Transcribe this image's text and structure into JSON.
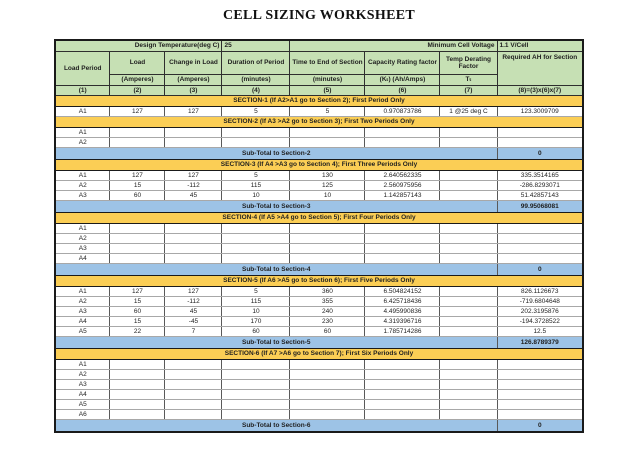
{
  "title": "CELL SIZING WORKSHEET",
  "colors": {
    "header_green": "#C6E0B4",
    "section_bar_gold": "#FBCE55",
    "subtotal_blue": "#9DC3E6",
    "border_dark": "#1a1a1a"
  },
  "meta": {
    "design_temp_label": "Design Temperature(deg C)",
    "design_temp_value": "25",
    "min_cell_voltage_label": "Minimum Cell Voltage",
    "min_cell_voltage_value": "1.1 V/Cell"
  },
  "columns": {
    "headers": [
      "Load Period",
      "Load",
      "Change in Load",
      "Duration of Period",
      "Time to End of Section",
      "Capacity Rating factor",
      "Temp Derating Factor",
      "Required AH for Section"
    ],
    "units": [
      "",
      "(Amperes)",
      "(Amperes)",
      "(minutes)",
      "(minutes)",
      "(Kₜ) (Ah/Amps)",
      "Tₜ",
      ""
    ],
    "numbers": [
      "(1)",
      "(2)",
      "(3)",
      "(4)",
      "(5)",
      "(6)",
      "(7)",
      "(8)=(3)x(6)x(7)"
    ]
  },
  "sections": [
    {
      "header": "SECTION-1 (If A2>A1 go to Section 2); First Period Only",
      "rows": [
        [
          "A1",
          "127",
          "127",
          "5",
          "5",
          "0.970873786",
          "1 @25 deg C",
          "123.3009709"
        ]
      ],
      "subtotal": null
    },
    {
      "header": "SECTION-2 (If A3 >A2 go to Section 3); First Two Periods Only",
      "rows": [
        [
          "A1",
          "",
          "",
          "",
          "",
          "",
          "",
          ""
        ],
        [
          "A2",
          "",
          "",
          "",
          "",
          "",
          "",
          ""
        ]
      ],
      "subtotal": {
        "label": "Sub-Total to Section-2",
        "value": "0"
      }
    },
    {
      "header": "SECTION-3 (If A4 >A3 go to Section 4); First Three Periods Only",
      "rows": [
        [
          "A1",
          "127",
          "127",
          "5",
          "130",
          "2.640562335",
          "",
          "335.3514165"
        ],
        [
          "A2",
          "15",
          "-112",
          "115",
          "125",
          "2.560975956",
          "",
          "-286.8293071"
        ],
        [
          "A3",
          "60",
          "45",
          "10",
          "10",
          "1.142857143",
          "",
          "51.42857143"
        ]
      ],
      "subtotal": {
        "label": "Sub-Total to Section-3",
        "value": "99.95068081"
      }
    },
    {
      "header": "SECTION-4 (If A5 >A4 go to Section 5); First Four Periods Only",
      "rows": [
        [
          "A1",
          "",
          "",
          "",
          "",
          "",
          "",
          ""
        ],
        [
          "A2",
          "",
          "",
          "",
          "",
          "",
          "",
          ""
        ],
        [
          "A3",
          "",
          "",
          "",
          "",
          "",
          "",
          ""
        ],
        [
          "A4",
          "",
          "",
          "",
          "",
          "",
          "",
          ""
        ]
      ],
      "subtotal": {
        "label": "Sub-Total to Section-4",
        "value": "0"
      }
    },
    {
      "header": "SECTION-5 (If A6 >A5 go to Section 6); First Five Periods Only",
      "rows": [
        [
          "A1",
          "127",
          "127",
          "5",
          "360",
          "6.504824152",
          "",
          "826.1126673"
        ],
        [
          "A2",
          "15",
          "-112",
          "115",
          "355",
          "6.425718436",
          "",
          "-719.6804648"
        ],
        [
          "A3",
          "60",
          "45",
          "10",
          "240",
          "4.495990836",
          "",
          "202.3195876"
        ],
        [
          "A4",
          "15",
          "-45",
          "170",
          "230",
          "4.319396716",
          "",
          "-194.3728522"
        ],
        [
          "A5",
          "22",
          "7",
          "60",
          "60",
          "1.785714286",
          "",
          "12.5"
        ]
      ],
      "subtotal": {
        "label": "Sub-Total to Section-5",
        "value": "126.8789379"
      }
    },
    {
      "header": "SECTION-6 (If A7 >A6 go to Section 7); First Six Periods Only",
      "rows": [
        [
          "A1",
          "",
          "",
          "",
          "",
          "",
          "",
          ""
        ],
        [
          "A2",
          "",
          "",
          "",
          "",
          "",
          "",
          ""
        ],
        [
          "A3",
          "",
          "",
          "",
          "",
          "",
          "",
          ""
        ],
        [
          "A4",
          "",
          "",
          "",
          "",
          "",
          "",
          ""
        ],
        [
          "A5",
          "",
          "",
          "",
          "",
          "",
          "",
          ""
        ],
        [
          "A6",
          "",
          "",
          "",
          "",
          "",
          "",
          ""
        ]
      ],
      "subtotal": {
        "label": "Sub-Total to Section-6",
        "value": "0"
      }
    }
  ]
}
